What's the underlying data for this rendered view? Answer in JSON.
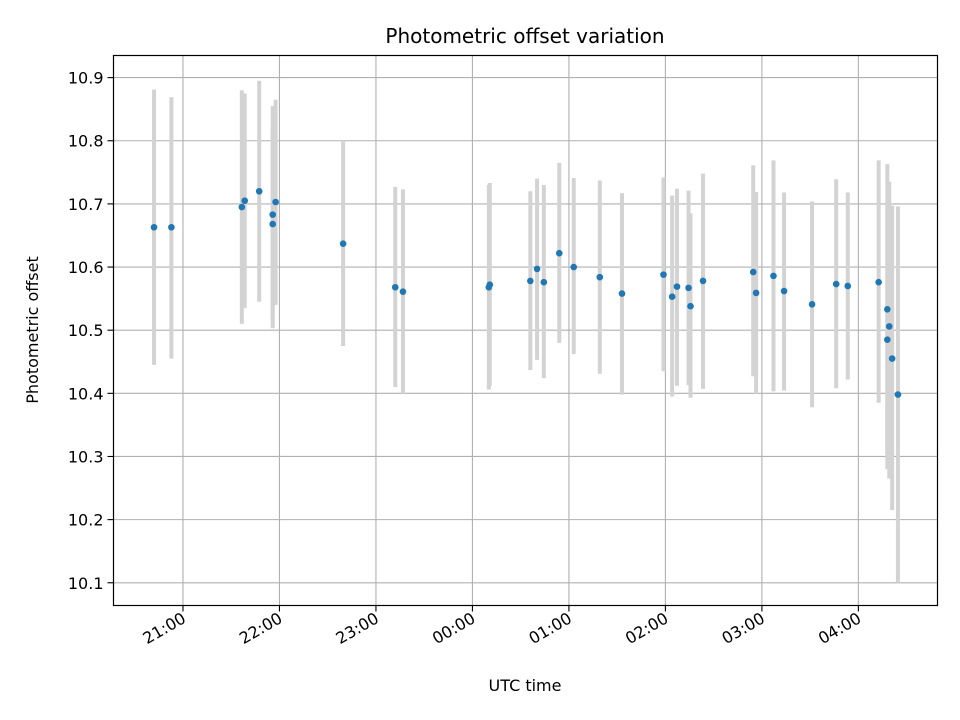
{
  "chart_data": {
    "type": "scatter",
    "title": "Photometric offset variation",
    "xlabel": "UTC time",
    "ylabel": "Photometric offset",
    "x_unit": "hours after 20:00 UTC",
    "xlim": [
      0.28,
      8.82
    ],
    "ylim": [
      10.064,
      10.935
    ],
    "yticks": [
      10.1,
      10.2,
      10.3,
      10.4,
      10.5,
      10.6,
      10.7,
      10.8,
      10.9
    ],
    "xticks": [
      {
        "x": 1,
        "label": "21:00"
      },
      {
        "x": 2,
        "label": "22:00"
      },
      {
        "x": 3,
        "label": "23:00"
      },
      {
        "x": 4,
        "label": "00:00"
      },
      {
        "x": 5,
        "label": "01:00"
      },
      {
        "x": 6,
        "label": "02:00"
      },
      {
        "x": 7,
        "label": "03:00"
      },
      {
        "x": 8,
        "label": "04:00"
      }
    ],
    "grid": true,
    "colors": {
      "point": "#1f77b4",
      "errorbar": "#d3d3d3",
      "grid": "#b0b0b0"
    },
    "points": [
      {
        "x": 0.7,
        "y": 10.663,
        "lo": 10.445,
        "hi": 10.881
      },
      {
        "x": 0.88,
        "y": 10.663,
        "lo": 10.455,
        "hi": 10.869
      },
      {
        "x": 1.61,
        "y": 10.695,
        "lo": 10.51,
        "hi": 10.88
      },
      {
        "x": 1.64,
        "y": 10.705,
        "lo": 10.535,
        "hi": 10.875
      },
      {
        "x": 1.79,
        "y": 10.72,
        "lo": 10.545,
        "hi": 10.895
      },
      {
        "x": 1.93,
        "y": 10.683,
        "lo": 10.503,
        "hi": 10.855
      },
      {
        "x": 1.93,
        "y": 10.668,
        "lo": 10.515,
        "hi": 10.822
      },
      {
        "x": 1.96,
        "y": 10.703,
        "lo": 10.54,
        "hi": 10.865
      },
      {
        "x": 2.66,
        "y": 10.637,
        "lo": 10.475,
        "hi": 10.8
      },
      {
        "x": 3.2,
        "y": 10.568,
        "lo": 10.41,
        "hi": 10.727
      },
      {
        "x": 3.28,
        "y": 10.561,
        "lo": 10.4,
        "hi": 10.723
      },
      {
        "x": 4.17,
        "y": 10.568,
        "lo": 10.406,
        "hi": 10.73
      },
      {
        "x": 4.18,
        "y": 10.572,
        "lo": 10.412,
        "hi": 10.733
      },
      {
        "x": 4.6,
        "y": 10.578,
        "lo": 10.437,
        "hi": 10.72
      },
      {
        "x": 4.67,
        "y": 10.597,
        "lo": 10.453,
        "hi": 10.74
      },
      {
        "x": 4.74,
        "y": 10.576,
        "lo": 10.424,
        "hi": 10.73
      },
      {
        "x": 4.9,
        "y": 10.622,
        "lo": 10.48,
        "hi": 10.765
      },
      {
        "x": 5.05,
        "y": 10.6,
        "lo": 10.462,
        "hi": 10.741
      },
      {
        "x": 5.32,
        "y": 10.584,
        "lo": 10.431,
        "hi": 10.737
      },
      {
        "x": 5.55,
        "y": 10.558,
        "lo": 10.398,
        "hi": 10.717
      },
      {
        "x": 5.98,
        "y": 10.588,
        "lo": 10.435,
        "hi": 10.742
      },
      {
        "x": 6.07,
        "y": 10.553,
        "lo": 10.395,
        "hi": 10.713
      },
      {
        "x": 6.12,
        "y": 10.569,
        "lo": 10.412,
        "hi": 10.724
      },
      {
        "x": 6.24,
        "y": 10.567,
        "lo": 10.413,
        "hi": 10.721
      },
      {
        "x": 6.26,
        "y": 10.538,
        "lo": 10.393,
        "hi": 10.685
      },
      {
        "x": 6.39,
        "y": 10.578,
        "lo": 10.407,
        "hi": 10.748
      },
      {
        "x": 6.91,
        "y": 10.592,
        "lo": 10.427,
        "hi": 10.761
      },
      {
        "x": 6.94,
        "y": 10.559,
        "lo": 10.4,
        "hi": 10.719
      },
      {
        "x": 7.12,
        "y": 10.586,
        "lo": 10.403,
        "hi": 10.769
      },
      {
        "x": 7.23,
        "y": 10.562,
        "lo": 10.404,
        "hi": 10.718
      },
      {
        "x": 7.52,
        "y": 10.541,
        "lo": 10.378,
        "hi": 10.704
      },
      {
        "x": 7.77,
        "y": 10.573,
        "lo": 10.408,
        "hi": 10.739
      },
      {
        "x": 7.89,
        "y": 10.57,
        "lo": 10.422,
        "hi": 10.718
      },
      {
        "x": 8.21,
        "y": 10.576,
        "lo": 10.385,
        "hi": 10.769
      },
      {
        "x": 8.3,
        "y": 10.533,
        "lo": 10.303,
        "hi": 10.763
      },
      {
        "x": 8.32,
        "y": 10.506,
        "lo": 10.265,
        "hi": 10.735
      },
      {
        "x": 8.3,
        "y": 10.485,
        "lo": 10.28,
        "hi": 10.7
      },
      {
        "x": 8.35,
        "y": 10.455,
        "lo": 10.215,
        "hi": 10.697
      },
      {
        "x": 8.41,
        "y": 10.398,
        "lo": 10.1,
        "hi": 10.696
      }
    ]
  }
}
